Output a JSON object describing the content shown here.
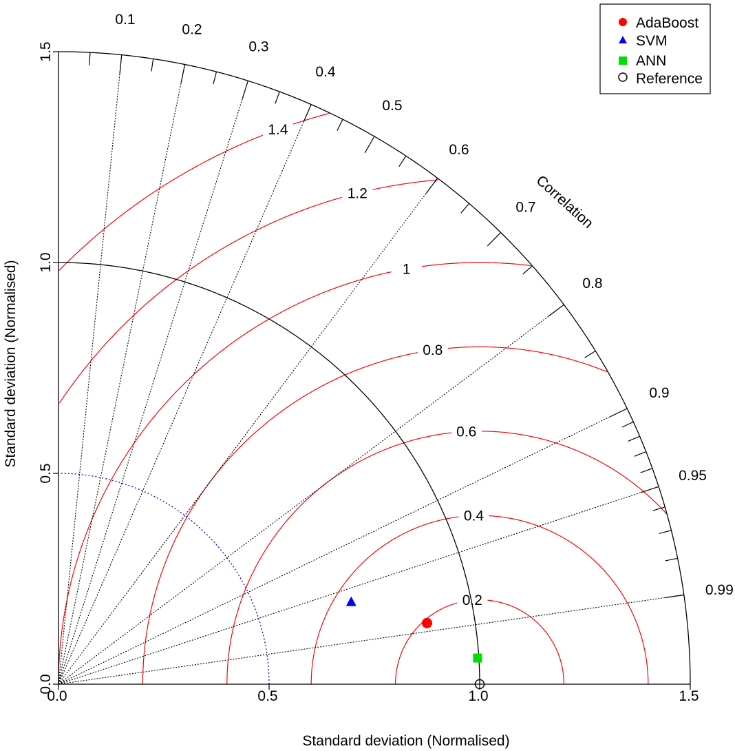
{
  "chart_data": {
    "type": "taylor-diagram",
    "xlabel": "Standard deviation (Normalised)",
    "ylabel": "Standard deviation (Normalised)",
    "correlation_label": "Correlation",
    "xlim": [
      0,
      1.5
    ],
    "ylim": [
      0,
      1.5
    ],
    "sd_ticks": [
      0.0,
      0.5,
      1.0,
      1.5
    ],
    "sd_tick_labels": [
      "0.0",
      "0.5",
      "1.0",
      "1.5"
    ],
    "correlation_ticks": [
      0.1,
      0.2,
      0.3,
      0.4,
      0.5,
      0.6,
      0.7,
      0.8,
      0.9,
      0.95,
      0.99
    ],
    "correlation_tick_labels": [
      "0.1",
      "0.2",
      "0.3",
      "0.4",
      "0.5",
      "0.6",
      "0.7",
      "0.8",
      "0.9",
      "0.95",
      "0.99"
    ],
    "correlation_radial_lines": [
      0.1,
      0.2,
      0.3,
      0.4,
      0.6,
      0.8,
      0.9,
      0.95,
      0.99
    ],
    "reference_arc_sd": 1.0,
    "blue_dotted_arc_sd": 0.5,
    "rmsd_contours": [
      0.2,
      0.4,
      0.6,
      0.8,
      1.0,
      1.2,
      1.4
    ],
    "rmsd_contour_labels": [
      "0.2",
      "0.4",
      "0.6",
      "0.8",
      "1",
      "1.2",
      "1.4"
    ],
    "series": [
      {
        "name": "AdaBoost",
        "marker": "circle",
        "color": "#ff0000",
        "x": 0.875,
        "y": 0.145
      },
      {
        "name": "SVM",
        "marker": "triangle",
        "color": "#0000ff",
        "x": 0.695,
        "y": 0.195
      },
      {
        "name": "ANN",
        "marker": "square",
        "color": "#00dd00",
        "x": 0.995,
        "y": 0.062
      },
      {
        "name": "Reference",
        "marker": "open-circle",
        "color": "#000000",
        "x": 1.0,
        "y": 0.0
      }
    ],
    "legend": "top-right",
    "colors": {
      "contour": "#ff0000",
      "blue_arc": "#0000ff",
      "axes": "#000000"
    }
  }
}
